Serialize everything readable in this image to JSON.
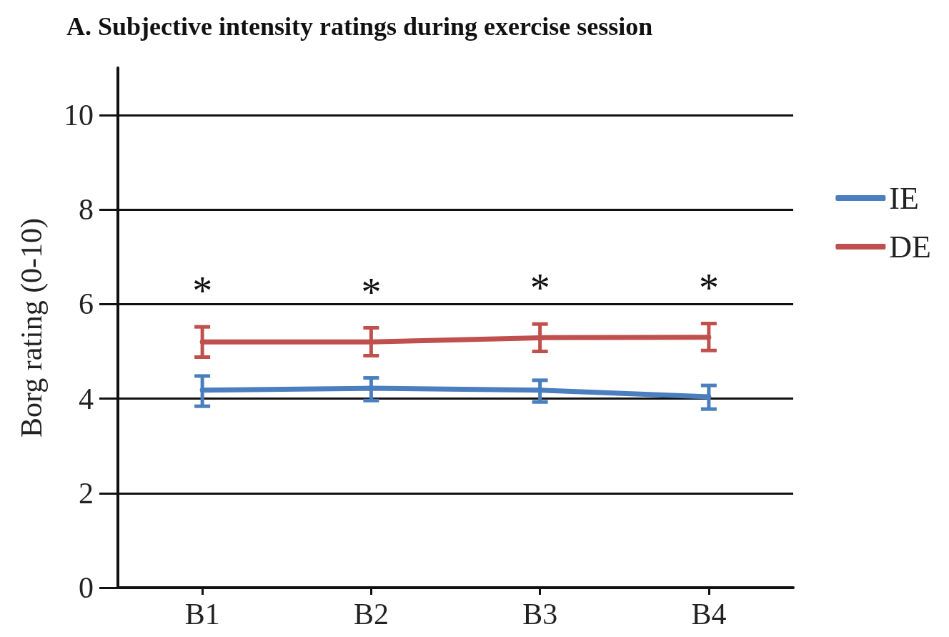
{
  "chart_data": {
    "type": "line",
    "title": "A. Subjective intensity ratings during exercise session",
    "ylabel": "Borg rating (0-10)",
    "categories": [
      "B1",
      "B2",
      "B3",
      "B4"
    ],
    "series": [
      {
        "name": "IE",
        "color": "#4a7ebf",
        "values": [
          4.18,
          4.22,
          4.18,
          4.04
        ],
        "errors": [
          [
            3.84,
            4.48
          ],
          [
            3.96,
            4.44
          ],
          [
            3.93,
            4.39
          ],
          [
            3.78,
            4.28
          ]
        ]
      },
      {
        "name": "DE",
        "color": "#c0504d",
        "values": [
          5.2,
          5.2,
          5.29,
          5.3
        ],
        "errors": [
          [
            4.88,
            5.52
          ],
          [
            4.91,
            5.5
          ],
          [
            5.0,
            5.58
          ],
          [
            5.02,
            5.59
          ]
        ]
      }
    ],
    "annotations": [
      "*",
      "*",
      "*",
      "*"
    ],
    "ylim": [
      0,
      11
    ],
    "yticks": [
      0,
      2,
      4,
      6,
      8,
      10
    ],
    "grid": "y",
    "legend": "right",
    "marker": "none",
    "line_style": "solid"
  }
}
